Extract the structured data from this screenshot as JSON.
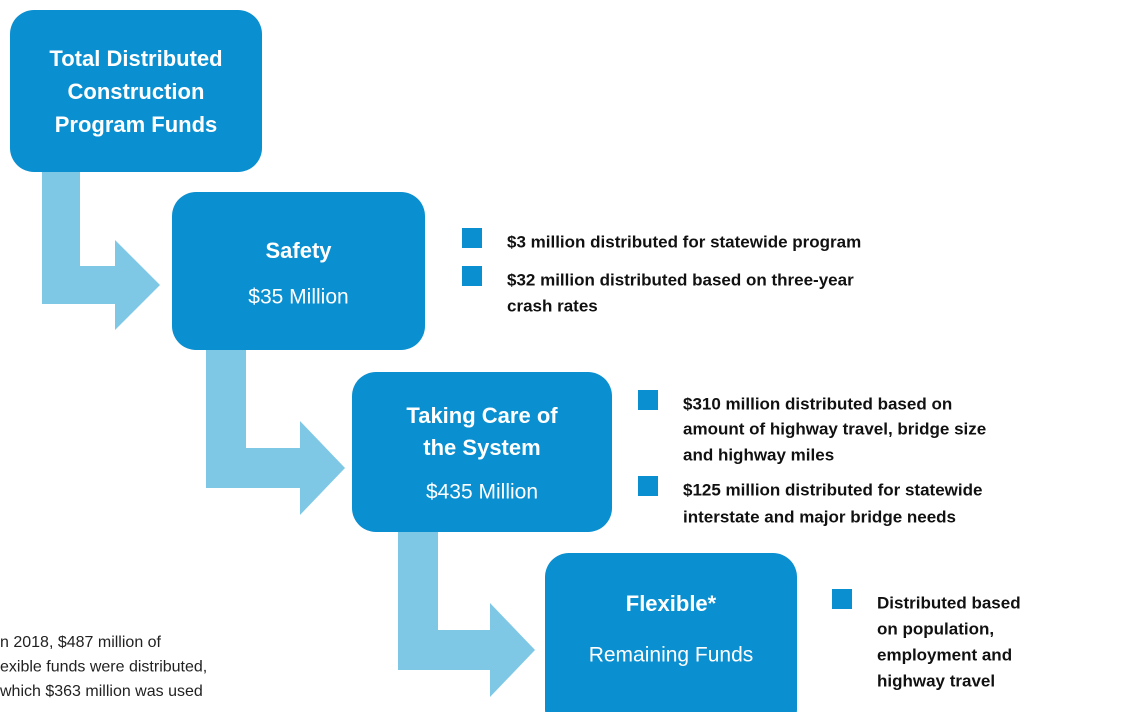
{
  "nodes": [
    {
      "title": [
        "Total Distributed",
        "Construction",
        "Program Funds"
      ]
    },
    {
      "title": [
        "Safety"
      ],
      "amount": "$35 Million",
      "bullets": [
        [
          "$3 million distributed for statewide program"
        ],
        [
          "$32 million distributed based on three-year",
          "crash rates"
        ]
      ]
    },
    {
      "title": [
        "Taking Care of",
        "the System"
      ],
      "amount": "$435 Million",
      "bullets": [
        [
          "$310 million distributed based on",
          "amount of highway travel, bridge size",
          "and highway miles"
        ],
        [
          "$125 million distributed for statewide",
          "interstate and major bridge needs"
        ]
      ]
    },
    {
      "title": [
        "Flexible*"
      ],
      "amount": "Remaining Funds",
      "bullets": [
        [
          "Distributed based",
          "on population,",
          "employment and",
          "highway travel"
        ]
      ]
    }
  ],
  "footnote": [
    "n 2018, $487 million of",
    "exible funds were distributed,",
    " which $363 million was used"
  ]
}
